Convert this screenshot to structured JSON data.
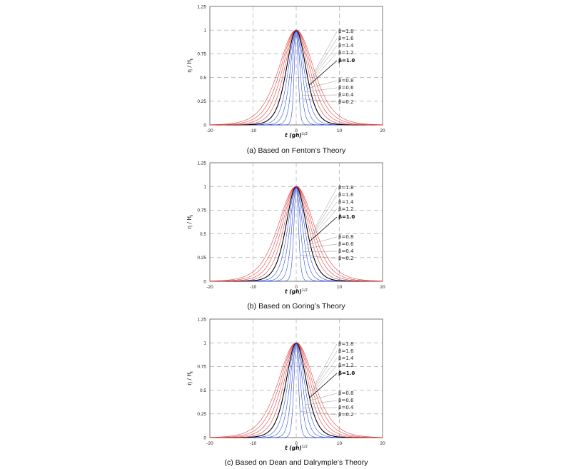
{
  "chart_data": [
    {
      "type": "line",
      "caption": "(a) Based on Fenton’s Theory",
      "xlabel": "t (gh)^(1/2)",
      "ylabel": "η / H_i",
      "xlim": [
        -20,
        20
      ],
      "ylim": [
        0,
        1.25
      ],
      "xticks": [
        "-20",
        "-10",
        "0",
        "10",
        "20"
      ],
      "yticks": [
        "0",
        "0.25",
        "0.5",
        "0.75",
        "1",
        "1.25"
      ],
      "grid": "dashed",
      "series": [
        {
          "name": "β=0.2",
          "beta": 0.2,
          "amplitude": 1.0,
          "half_width": 0.6,
          "color": "#1f3fd1"
        },
        {
          "name": "β=0.4",
          "beta": 0.4,
          "amplitude": 1.0,
          "half_width": 1.2,
          "color": "#1f3fd1"
        },
        {
          "name": "β=0.6",
          "beta": 0.6,
          "amplitude": 1.0,
          "half_width": 1.8,
          "color": "#1f3fd1"
        },
        {
          "name": "β=0.8",
          "beta": 0.8,
          "amplitude": 1.0,
          "half_width": 2.4,
          "color": "#1f3fd1"
        },
        {
          "name": "β=1.0",
          "beta": 1.0,
          "amplitude": 1.0,
          "half_width": 3.0,
          "color": "#000000"
        },
        {
          "name": "β=1.2",
          "beta": 1.2,
          "amplitude": 1.0,
          "half_width": 3.6,
          "color": "#e03030"
        },
        {
          "name": "β=1.4",
          "beta": 1.4,
          "amplitude": 1.0,
          "half_width": 4.2,
          "color": "#e03030"
        },
        {
          "name": "β=1.6",
          "beta": 1.6,
          "amplitude": 1.0,
          "half_width": 4.8,
          "color": "#e03030"
        },
        {
          "name": "β=1.8",
          "beta": 1.8,
          "amplitude": 1.0,
          "half_width": 5.4,
          "color": "#e03030"
        }
      ]
    },
    {
      "type": "line",
      "caption": "(b) Based on Goring’s Theory",
      "xlabel": "t (gh)^(1/2)",
      "ylabel": "η / H_i",
      "xlim": [
        -20,
        20
      ],
      "ylim": [
        0,
        1.25
      ],
      "xticks": [
        "-20",
        "-10",
        "0",
        "10",
        "20"
      ],
      "yticks": [
        "0",
        "0.25",
        "0.5",
        "0.75",
        "1",
        "1.25"
      ],
      "grid": "dashed",
      "series": [
        {
          "name": "β=0.2",
          "beta": 0.2,
          "amplitude": 1.0,
          "half_width": 0.7,
          "color": "#1f3fd1"
        },
        {
          "name": "β=0.4",
          "beta": 0.4,
          "amplitude": 1.0,
          "half_width": 1.3,
          "color": "#1f3fd1"
        },
        {
          "name": "β=0.6",
          "beta": 0.6,
          "amplitude": 1.0,
          "half_width": 1.9,
          "color": "#1f3fd1"
        },
        {
          "name": "β=0.8",
          "beta": 0.8,
          "amplitude": 1.0,
          "half_width": 2.5,
          "color": "#1f3fd1"
        },
        {
          "name": "β=1.0",
          "beta": 1.0,
          "amplitude": 1.0,
          "half_width": 3.1,
          "color": "#000000"
        },
        {
          "name": "β=1.2",
          "beta": 1.2,
          "amplitude": 1.0,
          "half_width": 3.7,
          "color": "#e03030"
        },
        {
          "name": "β=1.4",
          "beta": 1.4,
          "amplitude": 1.0,
          "half_width": 4.3,
          "color": "#e03030"
        },
        {
          "name": "β=1.6",
          "beta": 1.6,
          "amplitude": 1.0,
          "half_width": 4.9,
          "color": "#e03030"
        },
        {
          "name": "β=1.8",
          "beta": 1.8,
          "amplitude": 1.0,
          "half_width": 5.5,
          "color": "#e03030"
        }
      ]
    },
    {
      "type": "line",
      "caption": "(c) Based on Dean and Dalrymple’s Theory",
      "xlabel": "t (gh)^(1/2)",
      "ylabel": "η / H_i",
      "xlim": [
        -20,
        20
      ],
      "ylim": [
        0,
        1.25
      ],
      "xticks": [
        "-20",
        "-10",
        "0",
        "10",
        "20"
      ],
      "yticks": [
        "0",
        "0.25",
        "0.5",
        "0.75",
        "1",
        "1.25"
      ],
      "grid": "dashed",
      "series": [
        {
          "name": "β=0.2",
          "beta": 0.2,
          "amplitude": 1.0,
          "half_width": 0.7,
          "color": "#1f3fd1"
        },
        {
          "name": "β=0.4",
          "beta": 0.4,
          "amplitude": 1.0,
          "half_width": 1.3,
          "color": "#1f3fd1"
        },
        {
          "name": "β=0.6",
          "beta": 0.6,
          "amplitude": 1.0,
          "half_width": 1.9,
          "color": "#1f3fd1"
        },
        {
          "name": "β=0.8",
          "beta": 0.8,
          "amplitude": 1.0,
          "half_width": 2.5,
          "color": "#1f3fd1"
        },
        {
          "name": "β=1.0",
          "beta": 1.0,
          "amplitude": 1.0,
          "half_width": 3.1,
          "color": "#000000"
        },
        {
          "name": "β=1.2",
          "beta": 1.2,
          "amplitude": 1.0,
          "half_width": 3.7,
          "color": "#e03030"
        },
        {
          "name": "β=1.4",
          "beta": 1.4,
          "amplitude": 1.0,
          "half_width": 4.3,
          "color": "#e03030"
        },
        {
          "name": "β=1.6",
          "beta": 1.6,
          "amplitude": 1.0,
          "half_width": 4.9,
          "color": "#e03030"
        },
        {
          "name": "β=1.8",
          "beta": 1.8,
          "amplitude": 1.0,
          "half_width": 5.5,
          "color": "#e03030"
        }
      ]
    }
  ]
}
